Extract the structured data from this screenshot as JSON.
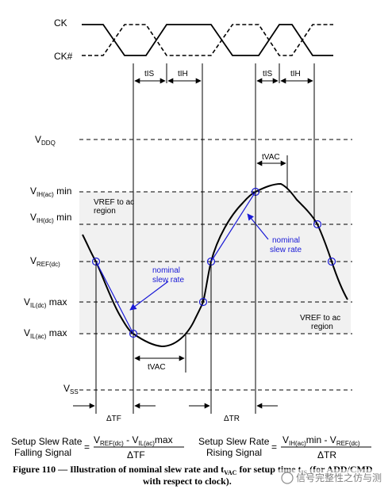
{
  "clock": {
    "ck": "CK",
    "ck_n": "CK#"
  },
  "timing": {
    "tis": "tIS",
    "tih": "tIH",
    "tvac": "tVAC"
  },
  "levels": {
    "vddq": {
      "main": "V",
      "sub": "DDQ",
      "tail": ""
    },
    "vih_ac": {
      "main": "V",
      "sub": "IH(ac)",
      "tail": " min"
    },
    "vih_dc": {
      "main": "V",
      "sub": "IH(dc)",
      "tail": " min"
    },
    "vref": {
      "main": "V",
      "sub": "REF(dc)",
      "tail": ""
    },
    "vil_dc": {
      "main": "V",
      "sub": "IL(dc)",
      "tail": " max"
    },
    "vil_ac": {
      "main": "V",
      "sub": "IL(ac)",
      "tail": " max"
    },
    "vss": {
      "main": "V",
      "sub": "SS",
      "tail": ""
    }
  },
  "regions": {
    "top_line1": "VREF to ac",
    "top_line2": "region",
    "bottom_line1": "VREF to ac",
    "bottom_line2": "region"
  },
  "annotations": {
    "nominal_fall_1": "nominal",
    "nominal_fall_2": "slew rate",
    "nominal_rise_1": "nominal",
    "nominal_rise_2": "slew rate"
  },
  "deltas": {
    "tf": "ΔTF",
    "tr": "ΔTR"
  },
  "formulas": {
    "fall": {
      "label1": "Setup Slew Rate",
      "label2": "Falling Signal",
      "eq": "=",
      "num_a": "V",
      "num_a_sub": "REF(dc)",
      "num_mid": " - V",
      "num_b_sub": "IL(ac)",
      "num_tail": "max",
      "den": "ΔTF"
    },
    "rise": {
      "label1": "Setup Slew Rate",
      "label2": "Rising Signal",
      "eq": "=",
      "num_a": "V",
      "num_a_sub": "IH(ac)",
      "num_mid": "min - V",
      "num_b_sub": "REF(dc)",
      "num_tail": "",
      "den": "ΔTR"
    }
  },
  "caption": {
    "line1_a": "Figure 110 — Illustration of nominal slew rate and t",
    "line1_sub": "VAC",
    "line1_b": " for setup time t",
    "line1_sub2": "IS",
    "line1_c": " (for ADD/CMD",
    "line2": "with respect to clock)."
  },
  "watermark": {
    "text": "信号完整性之仿与测"
  },
  "colors": {
    "annotation": "#1a1ad6",
    "region_fill": "#f2f2f2",
    "line": "#000000"
  }
}
